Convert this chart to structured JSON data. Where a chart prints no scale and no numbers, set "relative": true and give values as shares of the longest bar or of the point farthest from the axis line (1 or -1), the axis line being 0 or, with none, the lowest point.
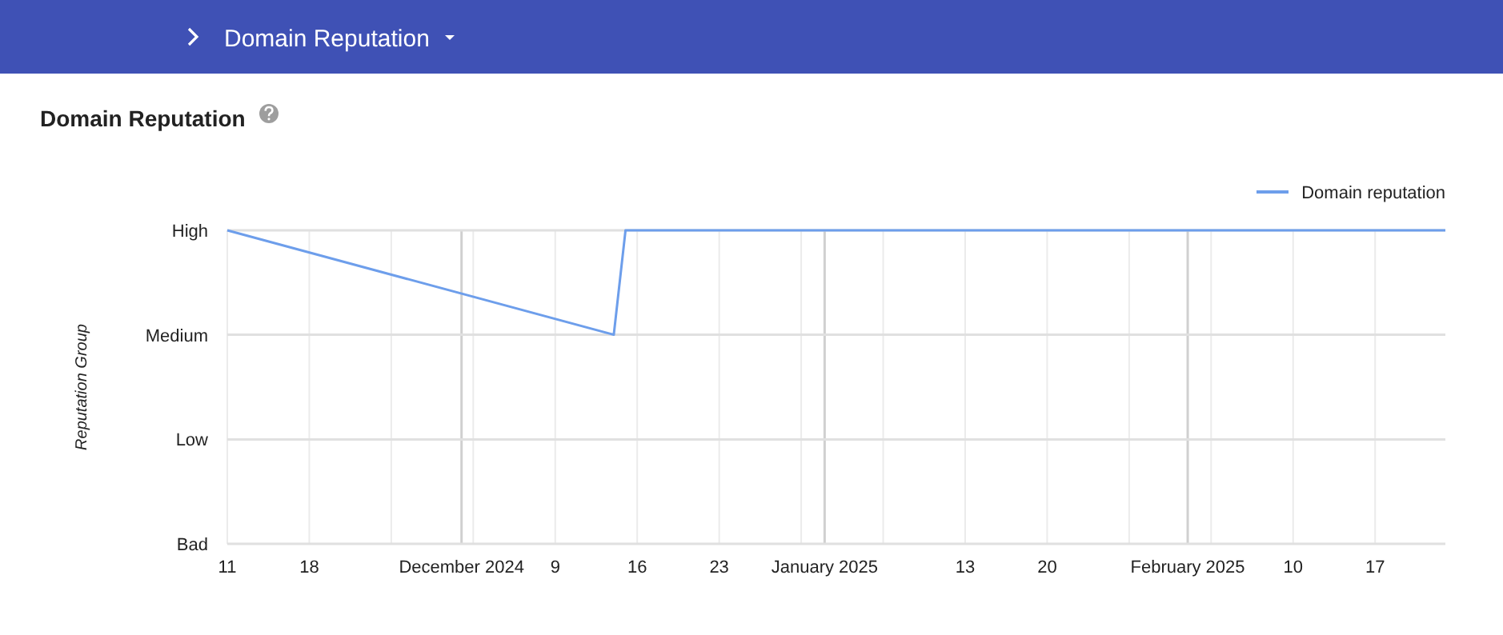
{
  "chart_data": {
    "type": "line",
    "title": "Domain Reputation",
    "annotations": [
      "Domain Reputation",
      "Reputation Group"
    ],
    "relative": true,
    "x": [
      "2024-11-11",
      "2024-12-14",
      "2024-12-15",
      "2025-02-23"
    ],
    "series": [
      {
        "name": "Domain reputation",
        "color": "#6d9eeb",
        "values": [
          1,
          0.667,
          1,
          1
        ]
      }
    ],
    "xlim": [
      "2024-11-11",
      "2025-02-23"
    ],
    "xticks": [
      {
        "value": "2024-11-11",
        "label": "11"
      },
      {
        "value": "2024-11-18",
        "label": "18"
      },
      {
        "value": "2024-11-25",
        "label": null
      },
      {
        "value": "2024-12-01",
        "label": "December 2024"
      },
      {
        "value": "2024-12-02",
        "label": null
      },
      {
        "value": "2024-12-09",
        "label": "9"
      },
      {
        "value": "2024-12-16",
        "label": "16"
      },
      {
        "value": "2024-12-23",
        "label": "23"
      },
      {
        "value": "2024-12-30",
        "label": null
      },
      {
        "value": "2025-01-01",
        "label": "January 2025"
      },
      {
        "value": "2025-01-06",
        "label": null
      },
      {
        "value": "2025-01-13",
        "label": "13"
      },
      {
        "value": "2025-01-20",
        "label": "20"
      },
      {
        "value": "2025-01-27",
        "label": null
      },
      {
        "value": "2025-02-01",
        "label": "February 2025"
      },
      {
        "value": "2025-02-03",
        "label": null
      },
      {
        "value": "2025-02-10",
        "label": "10"
      },
      {
        "value": "2025-02-17",
        "label": "17"
      }
    ],
    "ref_lines": [
      {
        "axis": "y",
        "value": 0,
        "label": "Bad",
        "color": "#e0e0e0"
      },
      {
        "axis": "y",
        "value": 0.333,
        "label": "Low",
        "color": "#e0e0e0"
      },
      {
        "axis": "y",
        "value": 0.667,
        "label": "Medium",
        "color": "#e0e0e0"
      },
      {
        "axis": "y",
        "value": 1,
        "label": "High",
        "color": "#e0e0e0"
      }
    ],
    "grid": "x",
    "legend": "top right",
    "marker": "none",
    "line_style": "solid"
  }
}
